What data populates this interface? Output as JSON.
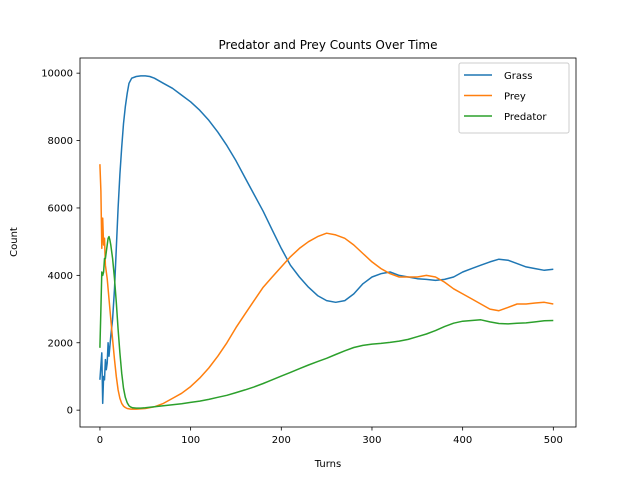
{
  "chart_data": {
    "type": "line",
    "title": "Predator and Prey Counts Over Time",
    "xlabel": "Turns",
    "ylabel": "Count",
    "xlim": [
      -22,
      525
    ],
    "ylim": [
      -500,
      10450
    ],
    "xticks": [
      0,
      100,
      200,
      300,
      400,
      500
    ],
    "yticks": [
      0,
      2000,
      4000,
      6000,
      8000,
      10000
    ],
    "grid": false,
    "legend_position": "top-right",
    "series": [
      {
        "name": "Grass",
        "color": "#1f77b4",
        "x": [
          0,
          2,
          3,
          4,
          5,
          6,
          7,
          8,
          9,
          10,
          12,
          14,
          16,
          18,
          20,
          22,
          24,
          26,
          28,
          30,
          32,
          35,
          40,
          45,
          50,
          55,
          60,
          70,
          80,
          90,
          100,
          110,
          120,
          130,
          140,
          150,
          160,
          170,
          180,
          190,
          200,
          210,
          220,
          230,
          240,
          250,
          260,
          270,
          280,
          290,
          300,
          310,
          320,
          330,
          340,
          350,
          360,
          370,
          380,
          390,
          400,
          410,
          420,
          430,
          440,
          450,
          460,
          470,
          480,
          490,
          500
        ],
        "y": [
          900,
          1700,
          200,
          1000,
          900,
          1500,
          1200,
          1400,
          2000,
          1600,
          2200,
          2700,
          3600,
          4800,
          6000,
          7000,
          7800,
          8500,
          9000,
          9400,
          9700,
          9850,
          9900,
          9920,
          9920,
          9900,
          9850,
          9700,
          9550,
          9350,
          9150,
          8900,
          8600,
          8250,
          7850,
          7400,
          6900,
          6400,
          5900,
          5350,
          4800,
          4300,
          3950,
          3650,
          3400,
          3250,
          3200,
          3250,
          3450,
          3750,
          3950,
          4050,
          4100,
          4000,
          3950,
          3900,
          3880,
          3850,
          3880,
          3950,
          4100,
          4200,
          4300,
          4400,
          4480,
          4450,
          4350,
          4250,
          4200,
          4150,
          4180
        ]
      },
      {
        "name": "Prey",
        "color": "#ff7f0e",
        "x": [
          0,
          1,
          2,
          3,
          4,
          5,
          6,
          8,
          10,
          12,
          14,
          16,
          18,
          20,
          22,
          24,
          26,
          28,
          30,
          34,
          40,
          50,
          60,
          70,
          80,
          90,
          100,
          110,
          120,
          130,
          140,
          150,
          160,
          170,
          180,
          190,
          200,
          210,
          220,
          230,
          240,
          250,
          260,
          270,
          280,
          290,
          300,
          310,
          320,
          330,
          340,
          350,
          360,
          370,
          380,
          390,
          400,
          410,
          420,
          430,
          440,
          450,
          460,
          470,
          480,
          490,
          500
        ],
        "y": [
          7300,
          6500,
          4800,
          5700,
          4900,
          5100,
          4300,
          3900,
          3300,
          2700,
          2100,
          1500,
          1000,
          600,
          350,
          200,
          120,
          80,
          50,
          30,
          30,
          50,
          100,
          200,
          350,
          500,
          700,
          950,
          1250,
          1600,
          2000,
          2450,
          2850,
          3250,
          3650,
          3950,
          4250,
          4550,
          4800,
          5000,
          5150,
          5250,
          5200,
          5100,
          4900,
          4650,
          4400,
          4200,
          4050,
          3950,
          3950,
          3950,
          4000,
          3950,
          3800,
          3600,
          3450,
          3300,
          3150,
          3000,
          2950,
          3050,
          3150,
          3150,
          3180,
          3200,
          3150
        ]
      },
      {
        "name": "Predator",
        "color": "#2ca02c",
        "x": [
          0,
          1,
          2,
          3,
          4,
          5,
          6,
          7,
          8,
          9,
          10,
          11,
          12,
          13,
          14,
          16,
          18,
          20,
          22,
          24,
          26,
          28,
          30,
          32,
          34,
          36,
          40,
          45,
          50,
          60,
          70,
          80,
          90,
          100,
          110,
          120,
          130,
          140,
          150,
          160,
          170,
          180,
          190,
          200,
          210,
          220,
          230,
          240,
          250,
          260,
          270,
          280,
          290,
          300,
          310,
          320,
          330,
          340,
          350,
          360,
          370,
          380,
          390,
          400,
          410,
          420,
          430,
          440,
          450,
          460,
          470,
          480,
          490,
          500
        ],
        "y": [
          1850,
          3000,
          4100,
          4000,
          4100,
          4500,
          4500,
          4700,
          4900,
          5100,
          5150,
          5050,
          4900,
          4700,
          4500,
          3900,
          3200,
          2400,
          1700,
          1100,
          650,
          380,
          220,
          130,
          90,
          70,
          60,
          60,
          70,
          100,
          130,
          160,
          190,
          230,
          270,
          320,
          380,
          440,
          520,
          600,
          690,
          790,
          900,
          1010,
          1120,
          1230,
          1340,
          1440,
          1540,
          1650,
          1760,
          1860,
          1920,
          1960,
          1980,
          2010,
          2050,
          2100,
          2180,
          2260,
          2360,
          2480,
          2580,
          2640,
          2660,
          2680,
          2620,
          2570,
          2560,
          2580,
          2590,
          2620,
          2650,
          2660
        ]
      }
    ]
  }
}
